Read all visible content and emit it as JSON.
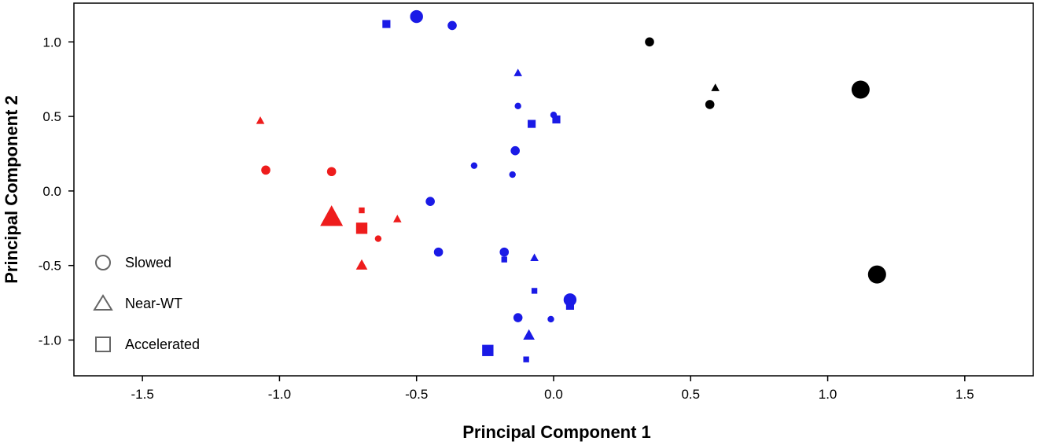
{
  "chart_data": {
    "type": "scatter",
    "title": "",
    "xlabel": "Principal Component 1",
    "ylabel": "Principal Component 2",
    "xlim": [
      -1.75,
      1.75
    ],
    "ylim": [
      -1.24,
      1.26
    ],
    "xticks": [
      -1.5,
      -1.0,
      -0.5,
      0.0,
      0.5,
      1.0,
      1.5
    ],
    "yticks": [
      1.0,
      0.5,
      0.0,
      -0.5,
      -1.0
    ],
    "xtick_labels": [
      "-1.5",
      "-1.0",
      "-0.5",
      "0.0",
      "0.5",
      "1.0",
      "1.5"
    ],
    "ytick_labels": [
      "1.0",
      "0.5",
      "0.0",
      "-0.5",
      "-1.0"
    ],
    "grid": false,
    "legend_position": "bottom-left",
    "legend": [
      {
        "shape": "circle",
        "label": "Slowed"
      },
      {
        "shape": "triangle",
        "label": "Near-WT"
      },
      {
        "shape": "square",
        "label": "Accelerated"
      }
    ],
    "colors": {
      "red": "#ee1c1c",
      "blue": "#1a1ae6",
      "black": "#000000"
    },
    "points": [
      {
        "x": -1.07,
        "y": 0.47,
        "shape": "triangle",
        "color": "red",
        "size": 1
      },
      {
        "x": -1.05,
        "y": 0.14,
        "shape": "circle",
        "color": "red",
        "size": 2
      },
      {
        "x": -0.81,
        "y": 0.13,
        "shape": "circle",
        "color": "red",
        "size": 2
      },
      {
        "x": -0.81,
        "y": -0.18,
        "shape": "triangle",
        "color": "red",
        "size": 4
      },
      {
        "x": -0.7,
        "y": -0.13,
        "shape": "square",
        "color": "red",
        "size": 1
      },
      {
        "x": -0.7,
        "y": -0.25,
        "shape": "square",
        "color": "red",
        "size": 3
      },
      {
        "x": -0.64,
        "y": -0.32,
        "shape": "circle",
        "color": "red",
        "size": 1
      },
      {
        "x": -0.57,
        "y": -0.19,
        "shape": "triangle",
        "color": "red",
        "size": 1
      },
      {
        "x": -0.7,
        "y": -0.5,
        "shape": "triangle",
        "color": "red",
        "size": 2
      },
      {
        "x": -0.61,
        "y": 1.12,
        "shape": "square",
        "color": "blue",
        "size": 2
      },
      {
        "x": -0.5,
        "y": 1.17,
        "shape": "circle",
        "color": "blue",
        "size": 3
      },
      {
        "x": -0.37,
        "y": 1.11,
        "shape": "circle",
        "color": "blue",
        "size": 2
      },
      {
        "x": -0.13,
        "y": 0.79,
        "shape": "triangle",
        "color": "blue",
        "size": 1
      },
      {
        "x": -0.13,
        "y": 0.57,
        "shape": "circle",
        "color": "blue",
        "size": 1
      },
      {
        "x": 0.0,
        "y": 0.51,
        "shape": "circle",
        "color": "blue",
        "size": 1
      },
      {
        "x": -0.08,
        "y": 0.45,
        "shape": "square",
        "color": "blue",
        "size": 2
      },
      {
        "x": 0.01,
        "y": 0.48,
        "shape": "square",
        "color": "blue",
        "size": 2
      },
      {
        "x": -0.14,
        "y": 0.27,
        "shape": "circle",
        "color": "blue",
        "size": 2
      },
      {
        "x": -0.29,
        "y": 0.17,
        "shape": "circle",
        "color": "blue",
        "size": 1
      },
      {
        "x": -0.15,
        "y": 0.11,
        "shape": "circle",
        "color": "blue",
        "size": 1
      },
      {
        "x": -0.45,
        "y": -0.07,
        "shape": "circle",
        "color": "blue",
        "size": 2
      },
      {
        "x": -0.42,
        "y": -0.41,
        "shape": "circle",
        "color": "blue",
        "size": 2
      },
      {
        "x": -0.18,
        "y": -0.41,
        "shape": "circle",
        "color": "blue",
        "size": 2
      },
      {
        "x": -0.18,
        "y": -0.46,
        "shape": "square",
        "color": "blue",
        "size": 1
      },
      {
        "x": -0.07,
        "y": -0.45,
        "shape": "triangle",
        "color": "blue",
        "size": 1
      },
      {
        "x": -0.07,
        "y": -0.67,
        "shape": "square",
        "color": "blue",
        "size": 1
      },
      {
        "x": 0.06,
        "y": -0.73,
        "shape": "circle",
        "color": "blue",
        "size": 3
      },
      {
        "x": 0.06,
        "y": -0.77,
        "shape": "square",
        "color": "blue",
        "size": 2
      },
      {
        "x": -0.13,
        "y": -0.85,
        "shape": "circle",
        "color": "blue",
        "size": 2
      },
      {
        "x": -0.01,
        "y": -0.86,
        "shape": "circle",
        "color": "blue",
        "size": 1
      },
      {
        "x": -0.09,
        "y": -0.97,
        "shape": "triangle",
        "color": "blue",
        "size": 2
      },
      {
        "x": -0.24,
        "y": -1.07,
        "shape": "square",
        "color": "blue",
        "size": 3
      },
      {
        "x": -0.1,
        "y": -1.13,
        "shape": "square",
        "color": "blue",
        "size": 1
      },
      {
        "x": 0.35,
        "y": 1.0,
        "shape": "circle",
        "color": "black",
        "size": 2
      },
      {
        "x": 0.59,
        "y": 0.69,
        "shape": "triangle",
        "color": "black",
        "size": 1
      },
      {
        "x": 0.57,
        "y": 0.58,
        "shape": "circle",
        "color": "black",
        "size": 2
      },
      {
        "x": 1.12,
        "y": 0.68,
        "shape": "circle",
        "color": "black",
        "size": 4
      },
      {
        "x": 1.18,
        "y": -0.56,
        "shape": "circle",
        "color": "black",
        "size": 4
      }
    ]
  }
}
